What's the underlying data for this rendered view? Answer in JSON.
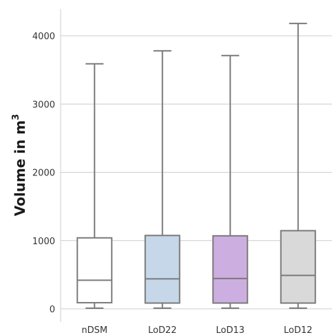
{
  "chart_data": {
    "type": "box",
    "title": "",
    "xlabel": "",
    "ylabel": "Volume in m",
    "ylabel_superscript": "3",
    "ylim": [
      -200,
      4380
    ],
    "yticks": [
      0,
      1000,
      2000,
      3000,
      4000
    ],
    "ytick_labels": [
      "0",
      "1000",
      "2000",
      "3000",
      "4000"
    ],
    "grid": "horizontal",
    "categories": [
      "nDSM",
      "LoD22",
      "LoD13",
      "LoD12"
    ],
    "boxes": [
      {
        "category": "nDSM",
        "whisker_low": 10,
        "q1": 90,
        "median": 420,
        "q3": 1040,
        "whisker_high": 3590,
        "color": "#ffffff"
      },
      {
        "category": "LoD22",
        "whisker_low": 10,
        "q1": 85,
        "median": 440,
        "q3": 1075,
        "whisker_high": 3780,
        "color": "#c5d7e8"
      },
      {
        "category": "LoD13",
        "whisker_low": 10,
        "q1": 85,
        "median": 445,
        "q3": 1070,
        "whisker_high": 3710,
        "color": "#cdaee0"
      },
      {
        "category": "LoD12",
        "whisker_low": 10,
        "q1": 85,
        "median": 490,
        "q3": 1145,
        "whisker_high": 4180,
        "color": "#d9d9d9"
      }
    ],
    "line_color": "#7a7a7a",
    "grid_color": "#cccccc"
  }
}
